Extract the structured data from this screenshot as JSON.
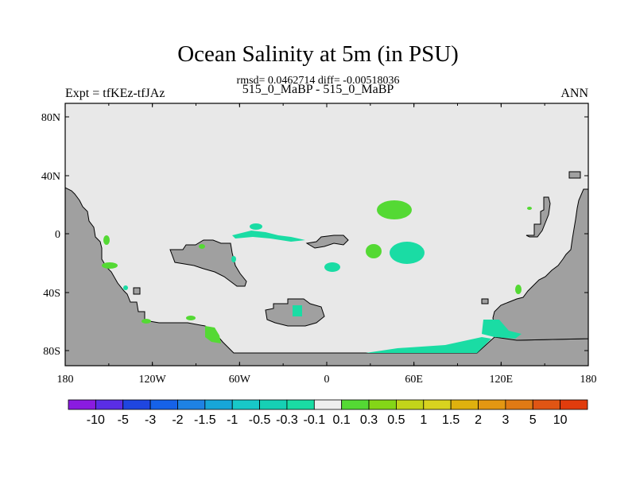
{
  "header": {
    "title": "Ocean Salinity at 5m (in PSU)",
    "subtitle": "rmsd= 0.0462714 diff= -0.00518036",
    "experiment_left": "Expt = tfKEz-tfJAz",
    "experiment_center": "515_0_MaBP - 515_0_MaBP",
    "season": "ANN"
  },
  "map": {
    "y_ticks": [
      "80N",
      "40N",
      "0",
      "40S",
      "80S"
    ],
    "x_ticks": [
      "180",
      "120W",
      "60W",
      "0",
      "60E",
      "120E",
      "180"
    ],
    "colors": {
      "ocean_background": "#e8e8e8",
      "land": "#a0a0a0",
      "coastline": "#000000"
    }
  },
  "colorbar": {
    "labels": [
      "-10",
      "-5",
      "-3",
      "-2",
      "-1.5",
      "-1",
      "-0.5",
      "-0.3",
      "-0.1",
      "0.1",
      "0.3",
      "0.5",
      "1",
      "1.5",
      "2",
      "3",
      "5",
      "10"
    ],
    "colors": [
      "#8a1be0",
      "#5a2ee6",
      "#1f46e0",
      "#1662e8",
      "#1e82e4",
      "#17a6d8",
      "#18c8c8",
      "#16d0b4",
      "#1adca4",
      "#eeeeee",
      "#54d934",
      "#84d617",
      "#c2d41a",
      "#d8d31f",
      "#dfb10e",
      "#e39712",
      "#e07a14",
      "#e05514",
      "#e13c0d"
    ]
  }
}
